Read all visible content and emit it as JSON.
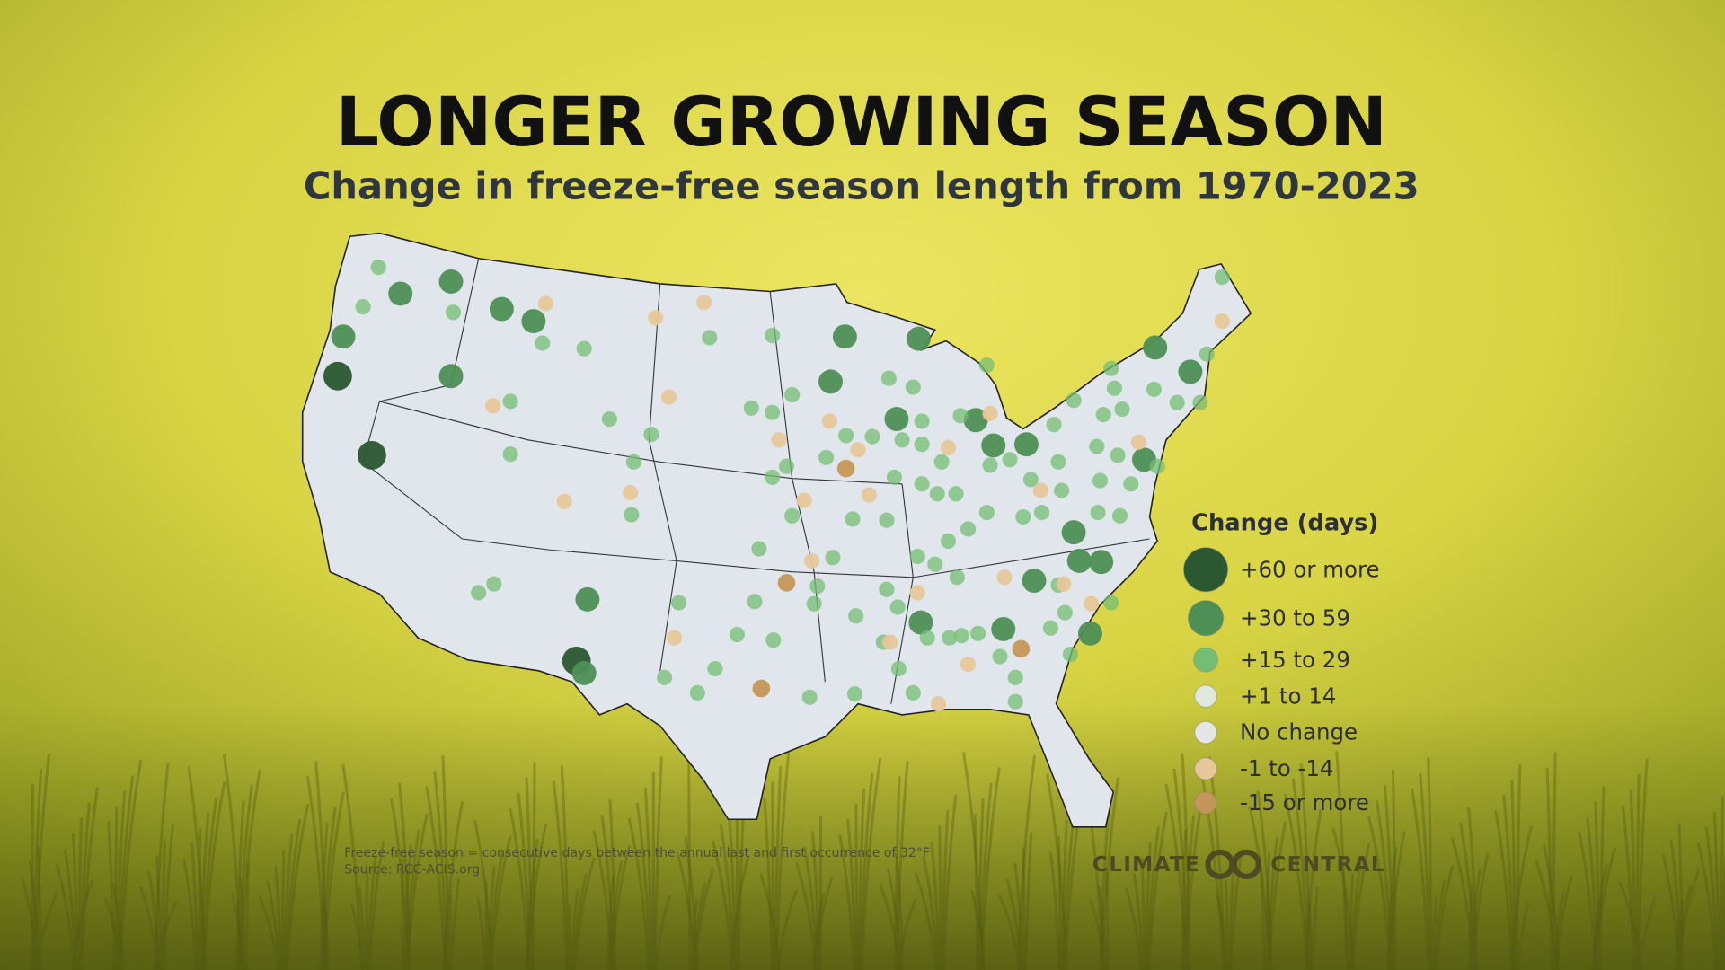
{
  "header": {
    "title": "LONGER GROWING SEASON",
    "subtitle": "Change in freeze-free season length from 1970-2023"
  },
  "legend": {
    "title": "Change (days)",
    "items": [
      {
        "label": "+60 or more",
        "color": "#2b5731"
      },
      {
        "label": "+30 to 59",
        "color": "#4e8f55"
      },
      {
        "label": "+15 to 29",
        "color": "#74be74"
      },
      {
        "label": "+1 to 14",
        "color": "#dfe9dc"
      },
      {
        "label": "No change",
        "color": "#e6e6e6"
      },
      {
        "label": "-1 to -14",
        "color": "#e6c799"
      },
      {
        "label": "-15 or more",
        "color": "#c59659"
      }
    ]
  },
  "footnote": {
    "definition": "Freeze-free season = consecutive days between the annual last and first occurrence of 32°F",
    "source": "Source: RCC-ACIS.org"
  },
  "logo": {
    "left": "CLIMATE",
    "right": "CENTRAL"
  }
}
